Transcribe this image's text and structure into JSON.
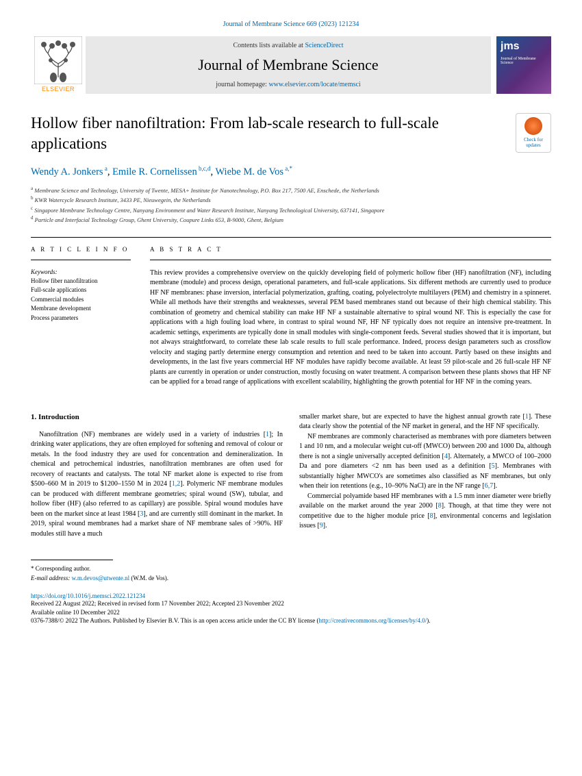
{
  "citation": "Journal of Membrane Science 669 (2023) 121234",
  "header": {
    "contents_prefix": "Contents lists available at ",
    "contents_link": "ScienceDirect",
    "journal_name": "Journal of Membrane Science",
    "homepage_prefix": "journal homepage: ",
    "homepage_url": "www.elsevier.com/locate/memsci",
    "elsevier_label": "ELSEVIER",
    "jms_label": "jms",
    "jms_sub": "Journal of Membrane Science"
  },
  "updates_badge": "Check for updates",
  "title": "Hollow fiber nanofiltration: From lab-scale research to full-scale applications",
  "authors": [
    {
      "name": "Wendy A. Jonkers",
      "sup": "a"
    },
    {
      "name": "Emile R. Cornelissen",
      "sup": "b,c,d"
    },
    {
      "name": "Wiebe M. de Vos",
      "sup": "a,*"
    }
  ],
  "affiliations": [
    {
      "sup": "a",
      "text": "Membrane Science and Technology, University of Twente, MESA+ Institute for Nanotechnology, P.O. Box 217, 7500 AE, Enschede, the Netherlands"
    },
    {
      "sup": "b",
      "text": "KWR Watercycle Research Institute, 3433 PE, Nieuwegein, the Netherlands"
    },
    {
      "sup": "c",
      "text": "Singapore Membrane Technology Centre, Nanyang Environment and Water Research Institute, Nanyang Technological University, 637141, Singapore"
    },
    {
      "sup": "d",
      "text": "Particle and Interfacial Technology Group, Ghent University, Coupure Links 653, B-9000, Ghent, Belgium"
    }
  ],
  "article_info": {
    "heading": "A R T I C L E  I N F O",
    "keywords_label": "Keywords:",
    "keywords": [
      "Hollow fiber nanofiltration",
      "Full-scale applications",
      "Commercial modules",
      "Membrane development",
      "Process parameters"
    ]
  },
  "abstract": {
    "heading": "A B S T R A C T",
    "text": "This review provides a comprehensive overview on the quickly developing field of polymeric hollow fiber (HF) nanofiltration (NF), including membrane (module) and process design, operational parameters, and full-scale applications. Six different methods are currently used to produce HF NF membranes: phase inversion, interfacial polymerization, grafting, coating, polyelectrolyte multilayers (PEM) and chemistry in a spinneret. While all methods have their strengths and weaknesses, several PEM based membranes stand out because of their high chemical stability. This combination of geometry and chemical stability can make HF NF a sustainable alternative to spiral wound NF. This is especially the case for applications with a high fouling load where, in contrast to spiral wound NF, HF NF typically does not require an intensive pre-treatment. In academic settings, experiments are typically done in small modules with single-component feeds. Several studies showed that it is important, but not always straightforward, to correlate these lab scale results to full scale performance. Indeed, process design parameters such as crossflow velocity and staging partly determine energy consumption and retention and need to be taken into account. Partly based on these insights and developments, in the last five years commercial HF NF modules have rapidly become available. At least 59 pilot-scale and 26 full-scale HF NF plants are currently in operation or under construction, mostly focusing on water treatment. A comparison between these plants shows that HF NF can be applied for a broad range of applications with excellent scalability, highlighting the growth potential for HF NF in the coming years."
  },
  "body": {
    "section_heading": "1. Introduction",
    "col1_p1": "Nanofiltration (NF) membranes are widely used in a variety of industries [1]; In drinking water applications, they are often employed for softening and removal of colour or metals. In the food industry they are used for concentration and demineralization. In chemical and petrochemical industries, nanofiltration membranes are often used for recovery of reactants and catalysts. The total NF market alone is expected to rise from $500–660 M in 2019 to $1200–1550 M in 2024 [1,2]. Polymeric NF membrane modules can be produced with different membrane geometries; spiral wound (SW), tubular, and hollow fiber (HF) (also referred to as capillary) are possible. Spiral wound modules have been on the market since at least 1984 [3], and are currently still dominant in the market. In 2019, spiral wound membranes had a market share of NF membrane sales of >90%. HF modules still have a much",
    "col2_p1": "smaller market share, but are expected to have the highest annual growth rate [1]. These data clearly show the potential of the NF market in general, and the HF NF specifically.",
    "col2_p2": "NF membranes are commonly characterised as membranes with pore diameters between 1 and 10 nm, and a molecular weight cut-off (MWCO) between 200 and 1000 Da, although there is not a single universally accepted definition [4]. Alternately, a MWCO of 100–2000 Da and pore diameters <2 nm has been used as a definition [5]. Membranes with substantially higher MWCO's are sometimes also classified as NF membranes, but only when their ion retentions (e.g., 10–90% NaCl) are in the NF range [6,7].",
    "col2_p3": "Commercial polyamide based HF membranes with a 1.5 mm inner diameter were briefly available on the market around the year 2000 [8]. Though, at that time they were not competitive due to the higher module price [8], environmental concerns and legislation issues [9]."
  },
  "footer": {
    "corresponding_label": "* Corresponding author.",
    "email_label": "E-mail address: ",
    "email": "w.m.devos@utwente.nl",
    "email_suffix": " (W.M. de Vos).",
    "doi": "https://doi.org/10.1016/j.memsci.2022.121234",
    "received": "Received 22 August 2022; Received in revised form 17 November 2022; Accepted 23 November 2022",
    "available": "Available online 10 December 2022",
    "copyright_prefix": "0376-7388/© 2022 The Authors. Published by Elsevier B.V. This is an open access article under the CC BY license (",
    "copyright_link": "http://creativecommons.org/licenses/by/4.0/",
    "copyright_suffix": ")."
  },
  "colors": {
    "link": "#0066aa",
    "elsevier_orange": "#ff8800",
    "header_bg": "#e8e8e8"
  }
}
